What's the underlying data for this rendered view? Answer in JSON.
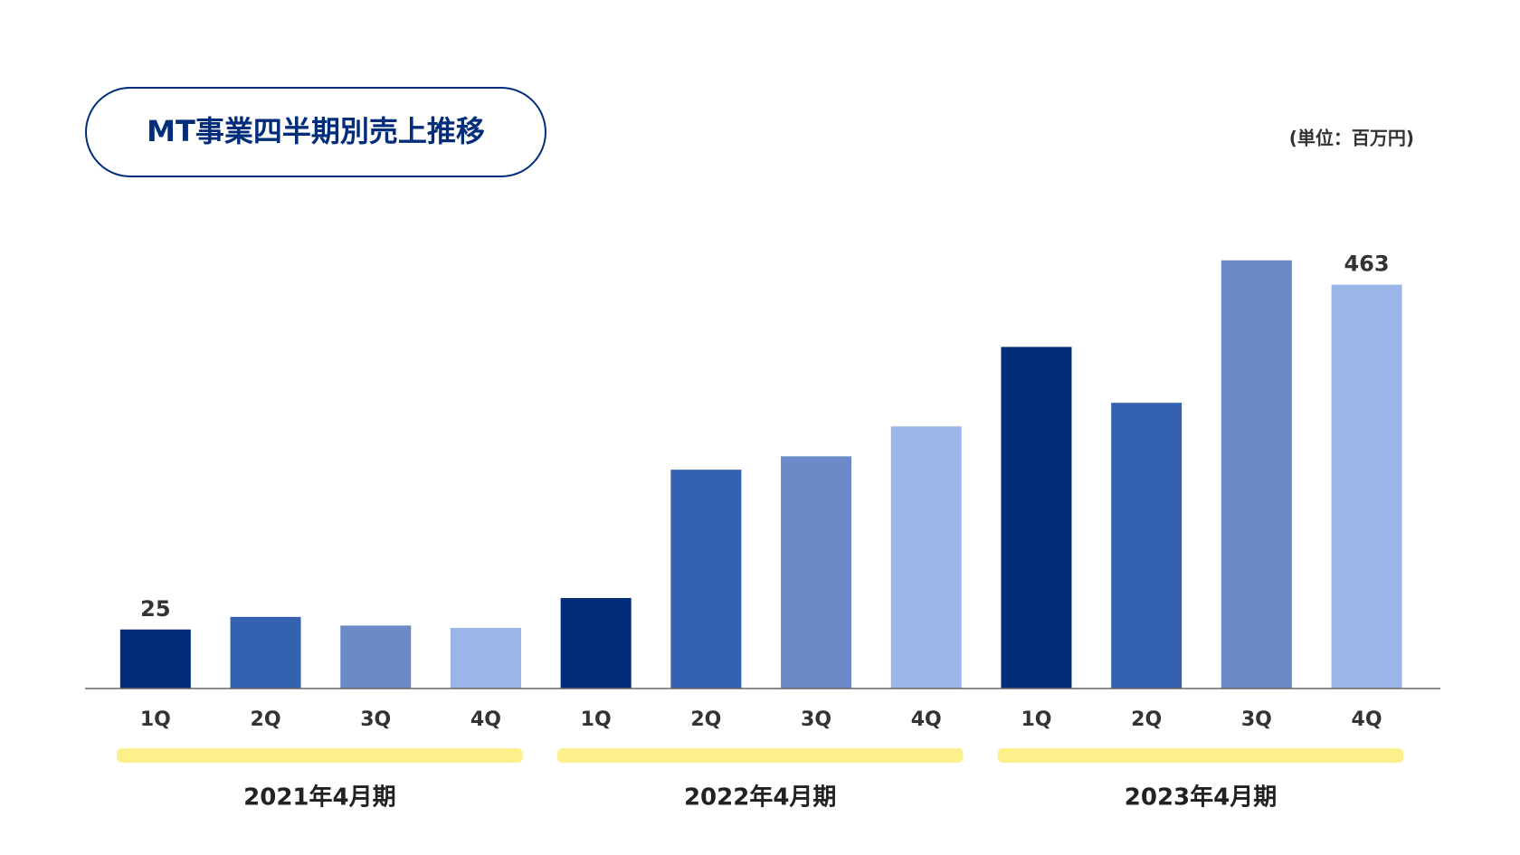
{
  "chart_data": {
    "type": "bar",
    "title": "MT事業四半期別売上推移",
    "unit_note": "(単位：百万円)",
    "categories": [
      "1Q",
      "2Q",
      "3Q",
      "4Q",
      "1Q",
      "2Q",
      "3Q",
      "4Q",
      "1Q",
      "2Q",
      "3Q",
      "4Q"
    ],
    "groups": [
      "2021年4月期",
      "2022年4月期",
      "2023年4月期"
    ],
    "values": [
      25,
      41,
      30,
      27,
      65,
      228,
      245,
      283,
      384,
      313,
      494,
      463
    ],
    "value_labels": [
      "25",
      null,
      null,
      null,
      null,
      null,
      null,
      null,
      null,
      null,
      null,
      "463"
    ],
    "quarter_colors": [
      "#022d7a",
      "#3562b0",
      "#6a8bc8",
      "#9ab5e8"
    ],
    "group_band_color": "#fdf08a",
    "ylim": [
      -50,
      550
    ],
    "grid": false
  }
}
